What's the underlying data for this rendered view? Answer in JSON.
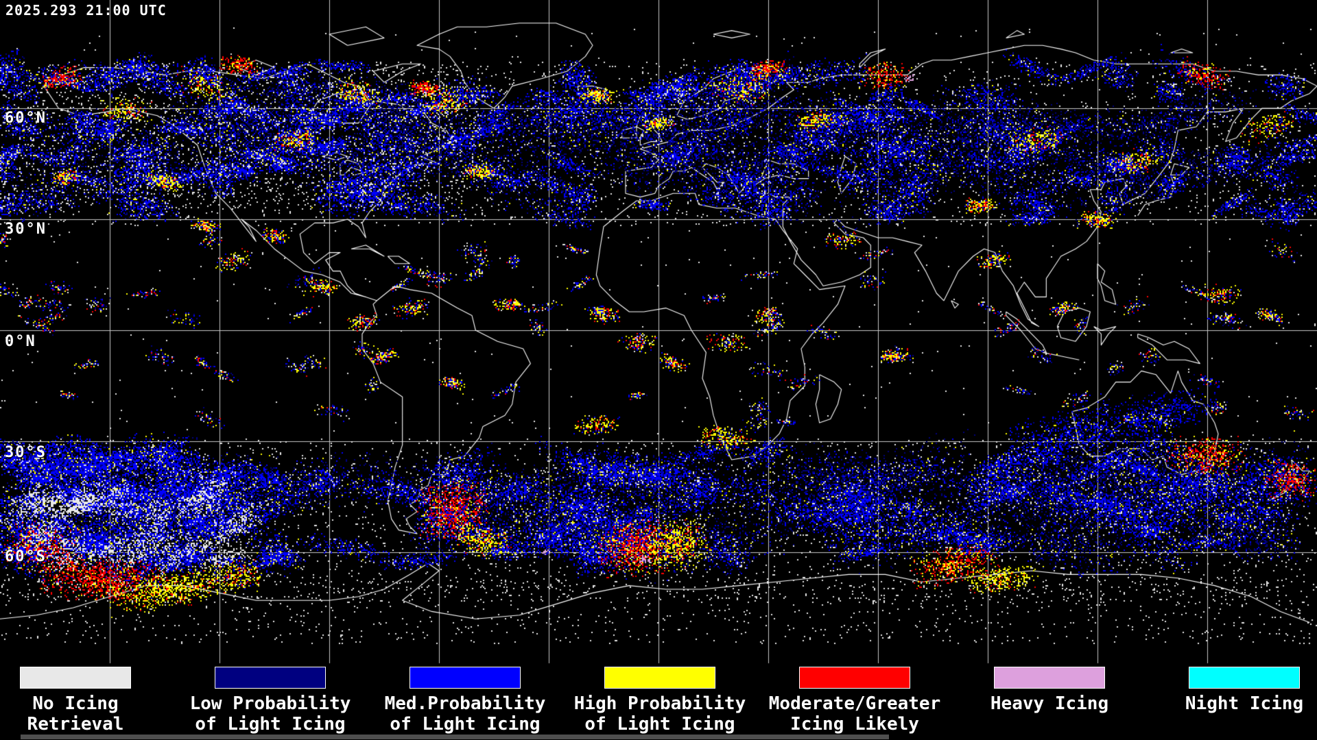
{
  "header": {
    "timestamp": "2025.293 21:00 UTC"
  },
  "map": {
    "background_color": "#000000",
    "coastline_color": "#ffffff",
    "grid_color": "#c9c9c9",
    "graticule_labels": [
      {
        "text": "60°N"
      },
      {
        "text": "30°N"
      },
      {
        "text": "0°N"
      },
      {
        "text": "30°S"
      },
      {
        "text": "60°S"
      }
    ]
  },
  "legend": {
    "items": [
      {
        "name": "no-icing-retrieval",
        "color": "#e8e8e8",
        "line1": "No Icing",
        "line2": "Retrieval"
      },
      {
        "name": "low-prob-light-icing",
        "color": "#000080",
        "line1": "Low Probability",
        "line2": "of Light Icing"
      },
      {
        "name": "med-prob-light-icing",
        "color": "#0000ff",
        "line1": "Med.Probability",
        "line2": "of Light Icing"
      },
      {
        "name": "high-prob-light-icing",
        "color": "#ffff00",
        "line1": "High Probability",
        "line2": "of Light Icing"
      },
      {
        "name": "moderate-greater-icing",
        "color": "#ff0000",
        "line1": "Moderate/Greater",
        "line2": "Icing Likely"
      },
      {
        "name": "heavy-icing",
        "color": "#dda0dd",
        "line1": "Heavy Icing",
        "line2": ""
      },
      {
        "name": "night-icing",
        "color": "#00ffff",
        "line1": "Night Icing",
        "line2": ""
      }
    ]
  },
  "progress": {
    "percent": 67
  }
}
